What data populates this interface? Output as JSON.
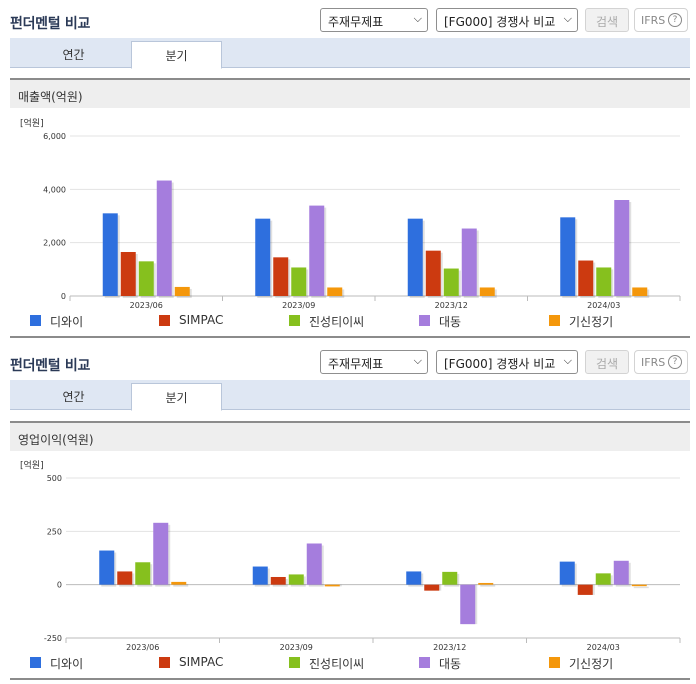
{
  "panels": [
    {
      "title": "펀더멘털 비교",
      "select1": "주재무제표",
      "select2": "[FG000] 경쟁사 비교",
      "search_label": "검색",
      "ifrs_label": "IFRS",
      "tabs": [
        {
          "label": "연간",
          "active": false
        },
        {
          "label": "분기",
          "active": true
        }
      ],
      "section_title": "매출액(억원)",
      "chart_data": {
        "type": "bar",
        "unit_label": "[억원]",
        "categories": [
          "2023/06",
          "2023/09",
          "2023/12",
          "2024/03"
        ],
        "ylim": [
          0,
          6000
        ],
        "yticks": [
          0,
          2000,
          4000,
          6000
        ],
        "ytick_labels": [
          "0",
          "2,000",
          "4,000",
          "6,000"
        ],
        "grid": true,
        "series": [
          {
            "name": "디와이",
            "color": "#2e6fde",
            "values": [
              3100,
              2900,
              2900,
              2950
            ]
          },
          {
            "name": "SIMPAC",
            "color": "#cc3a10",
            "values": [
              1650,
              1450,
              1700,
              1330
            ]
          },
          {
            "name": "진성티이씨",
            "color": "#86c01e",
            "values": [
              1300,
              1070,
              1030,
              1070
            ]
          },
          {
            "name": "대동",
            "color": "#a57ddd",
            "values": [
              4330,
              3390,
              2530,
              3600
            ]
          },
          {
            "name": "기신정기",
            "color": "#f4970b",
            "values": [
              340,
              320,
              320,
              320
            ]
          }
        ]
      }
    },
    {
      "title": "펀더멘털 비교",
      "select1": "주재무제표",
      "select2": "[FG000] 경쟁사 비교",
      "search_label": "검색",
      "ifrs_label": "IFRS",
      "tabs": [
        {
          "label": "연간",
          "active": false
        },
        {
          "label": "분기",
          "active": true
        }
      ],
      "section_title": "영업이익(억원)",
      "chart_data": {
        "type": "bar",
        "unit_label": "[억원]",
        "categories": [
          "2023/06",
          "2023/09",
          "2023/12",
          "2024/03"
        ],
        "ylim": [
          -250,
          500
        ],
        "yticks": [
          -250,
          0,
          250,
          500
        ],
        "ytick_labels": [
          "-250",
          "0",
          "250",
          "500"
        ],
        "grid": true,
        "series": [
          {
            "name": "디와이",
            "color": "#2e6fde",
            "values": [
              160,
              85,
              62,
              108
            ]
          },
          {
            "name": "SIMPAC",
            "color": "#cc3a10",
            "values": [
              62,
              36,
              -28,
              -48
            ]
          },
          {
            "name": "진성티이씨",
            "color": "#86c01e",
            "values": [
              105,
              48,
              60,
              53
            ]
          },
          {
            "name": "대동",
            "color": "#a57ddd",
            "values": [
              290,
              193,
              -185,
              112
            ]
          },
          {
            "name": "기신정기",
            "color": "#f4970b",
            "values": [
              13,
              -8,
              8,
              0
            ]
          }
        ]
      }
    }
  ]
}
